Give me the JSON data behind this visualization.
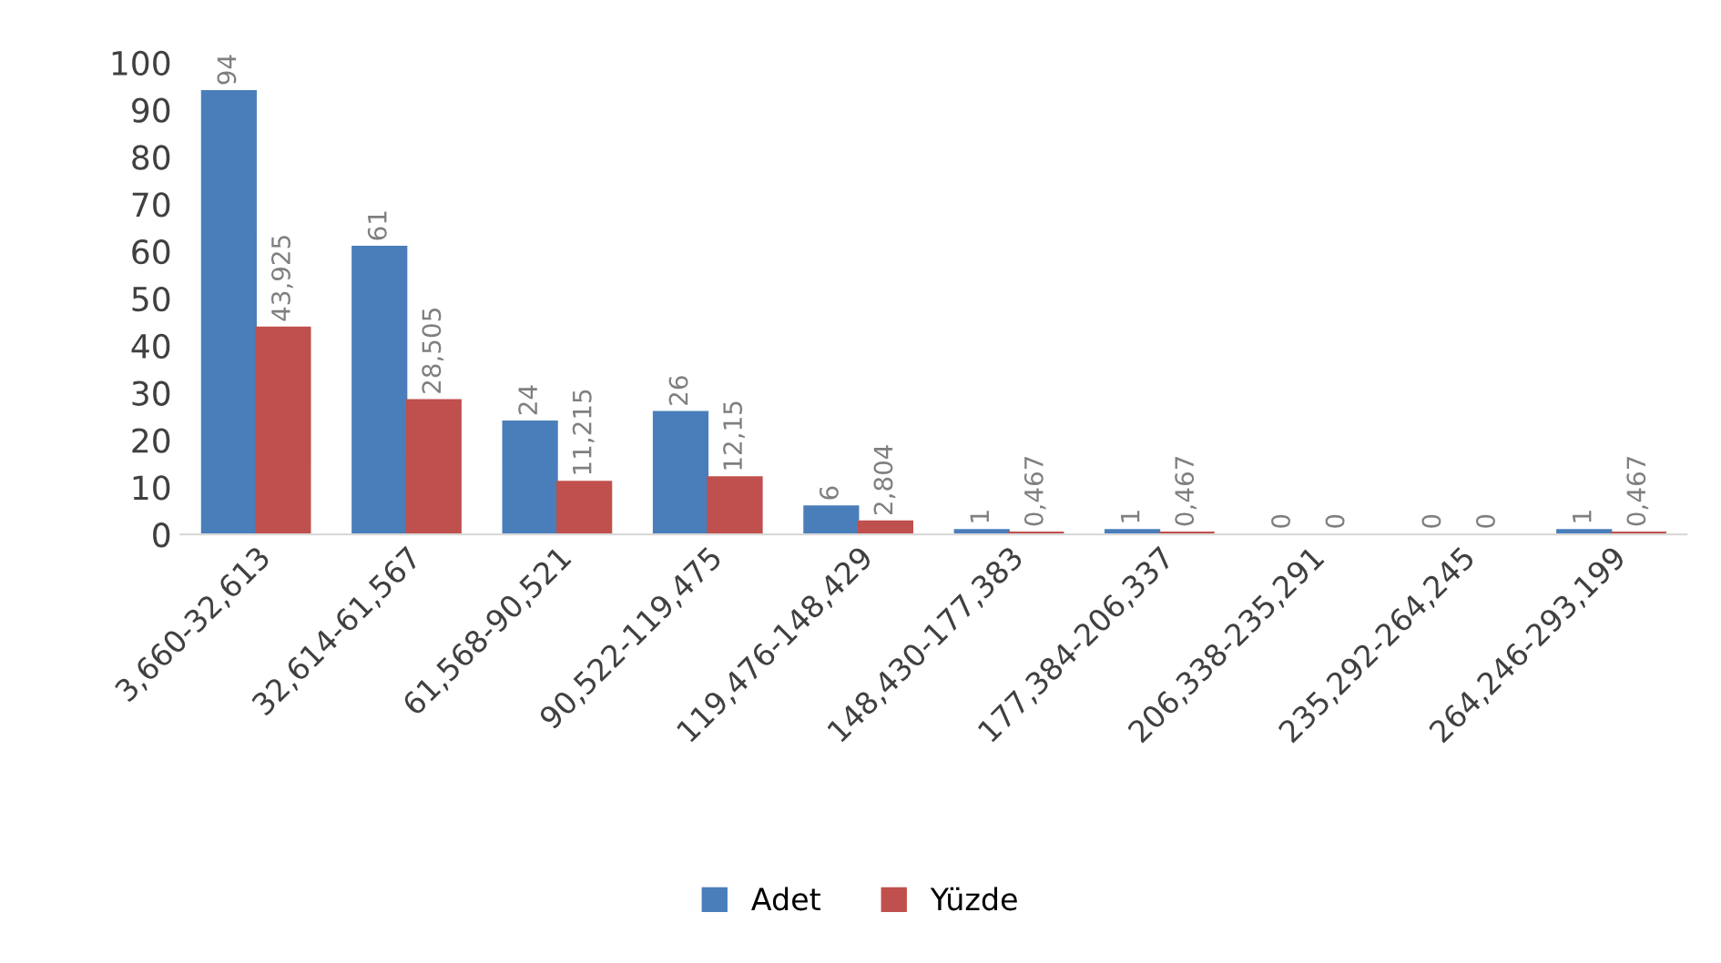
{
  "chart_data": {
    "type": "bar",
    "categories": [
      "3,660-32,613",
      "32,614-61,567",
      "61,568-90,521",
      "90,522-119,475",
      "119,476-148,429",
      "148,430-177,383",
      "177,384-206,337",
      "206,338-235,291",
      "235,292-264,245",
      "264,246-293,199"
    ],
    "series": [
      {
        "name": "Adet",
        "color": "#4a7ebb",
        "values": [
          94,
          61,
          24,
          26,
          6,
          1,
          1,
          0,
          0,
          1
        ],
        "value_labels": [
          "94",
          "61",
          "24",
          "26",
          "6",
          "1",
          "1",
          "0",
          "0",
          "1"
        ]
      },
      {
        "name": "Yüzde",
        "color": "#c0504d",
        "values": [
          43.925,
          28.505,
          11.215,
          12.15,
          2.804,
          0.467,
          0.467,
          0,
          0,
          0.467
        ],
        "value_labels": [
          "43,925",
          "28,505",
          "11,215",
          "12,15",
          "2,804",
          "0,467",
          "0,467",
          "0",
          "0",
          "0,467"
        ]
      }
    ],
    "ylim": [
      0,
      100
    ],
    "yticks": [
      0,
      10,
      20,
      30,
      40,
      50,
      60,
      70,
      80,
      90,
      100
    ],
    "grid": false,
    "legend": "bottom"
  }
}
